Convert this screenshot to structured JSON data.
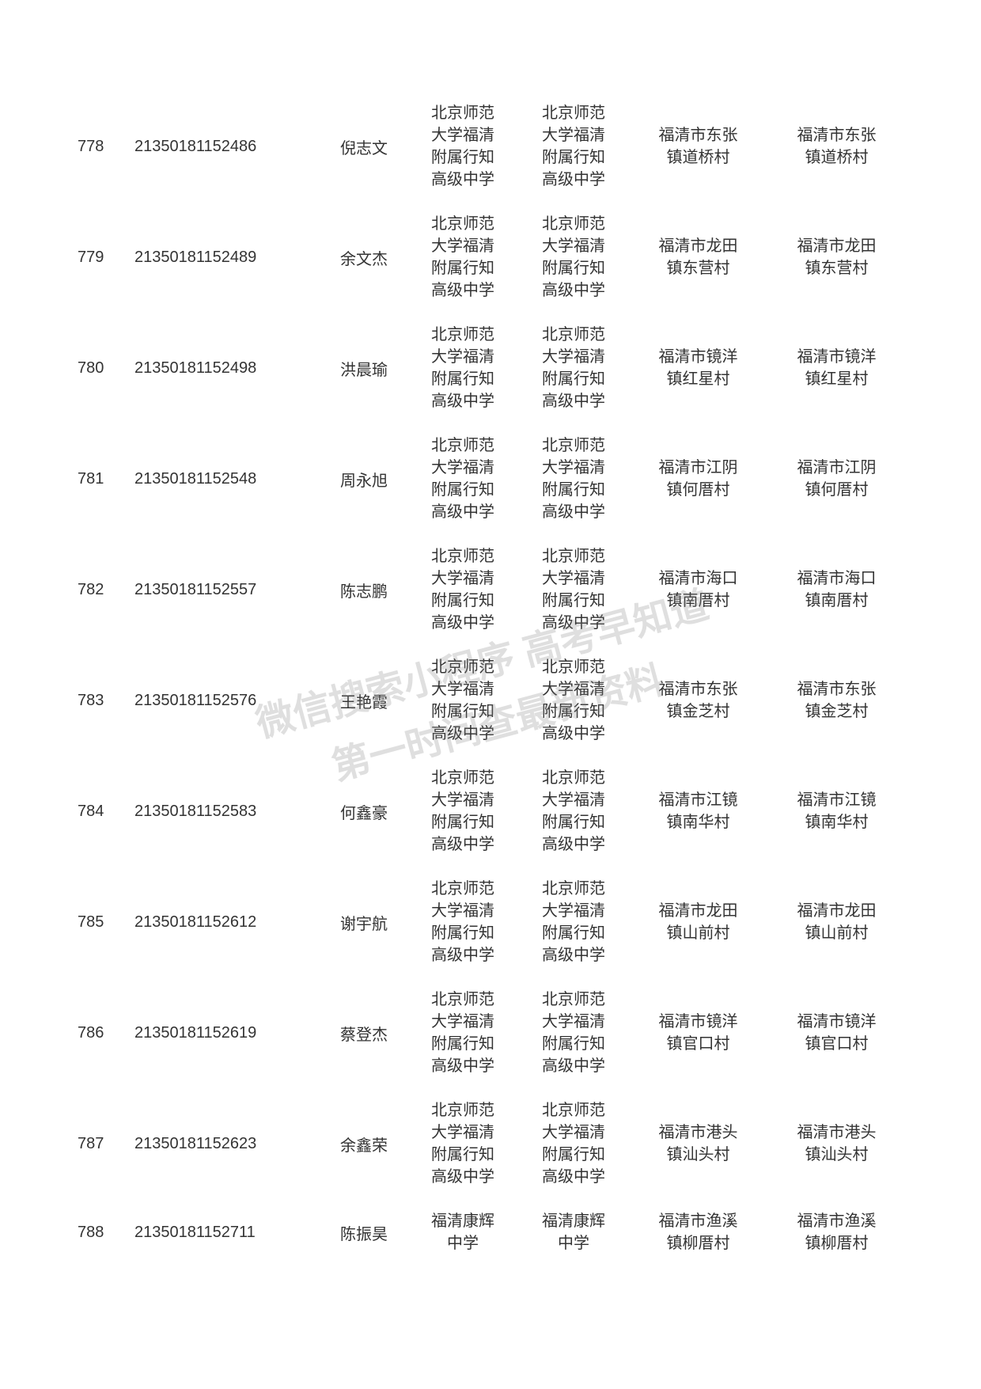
{
  "table": {
    "font_size": 20,
    "text_color": "#333333",
    "background_color": "#ffffff",
    "rows": [
      {
        "index": "778",
        "id": "21350181152486",
        "name": "倪志文",
        "school1": "北京师范大学福清附属行知高级中学",
        "school2": "北京师范大学福清附属行知高级中学",
        "addr1": "福清市东张镇道桥村",
        "addr2": "福清市东张镇道桥村"
      },
      {
        "index": "779",
        "id": "21350181152489",
        "name": "余文杰",
        "school1": "北京师范大学福清附属行知高级中学",
        "school2": "北京师范大学福清附属行知高级中学",
        "addr1": "福清市龙田镇东营村",
        "addr2": "福清市龙田镇东营村"
      },
      {
        "index": "780",
        "id": "21350181152498",
        "name": "洪晨瑜",
        "school1": "北京师范大学福清附属行知高级中学",
        "school2": "北京师范大学福清附属行知高级中学",
        "addr1": "福清市镜洋镇红星村",
        "addr2": "福清市镜洋镇红星村"
      },
      {
        "index": "781",
        "id": "21350181152548",
        "name": "周永旭",
        "school1": "北京师范大学福清附属行知高级中学",
        "school2": "北京师范大学福清附属行知高级中学",
        "addr1": "福清市江阴镇何厝村",
        "addr2": "福清市江阴镇何厝村"
      },
      {
        "index": "782",
        "id": "21350181152557",
        "name": "陈志鹏",
        "school1": "北京师范大学福清附属行知高级中学",
        "school2": "北京师范大学福清附属行知高级中学",
        "addr1": "福清市海口镇南厝村",
        "addr2": "福清市海口镇南厝村"
      },
      {
        "index": "783",
        "id": "21350181152576",
        "name": "王艳霞",
        "school1": "北京师范大学福清附属行知高级中学",
        "school2": "北京师范大学福清附属行知高级中学",
        "addr1": "福清市东张镇金芝村",
        "addr2": "福清市东张镇金芝村"
      },
      {
        "index": "784",
        "id": "21350181152583",
        "name": "何鑫豪",
        "school1": "北京师范大学福清附属行知高级中学",
        "school2": "北京师范大学福清附属行知高级中学",
        "addr1": "福清市江镜镇南华村",
        "addr2": "福清市江镜镇南华村"
      },
      {
        "index": "785",
        "id": "21350181152612",
        "name": "谢宇航",
        "school1": "北京师范大学福清附属行知高级中学",
        "school2": "北京师范大学福清附属行知高级中学",
        "addr1": "福清市龙田镇山前村",
        "addr2": "福清市龙田镇山前村"
      },
      {
        "index": "786",
        "id": "21350181152619",
        "name": "蔡登杰",
        "school1": "北京师范大学福清附属行知高级中学",
        "school2": "北京师范大学福清附属行知高级中学",
        "addr1": "福清市镜洋镇官口村",
        "addr2": "福清市镜洋镇官口村"
      },
      {
        "index": "787",
        "id": "21350181152623",
        "name": "余鑫荣",
        "school1": "北京师范大学福清附属行知高级中学",
        "school2": "北京师范大学福清附属行知高级中学",
        "addr1": "福清市港头镇汕头村",
        "addr2": "福清市港头镇汕头村"
      },
      {
        "index": "788",
        "id": "21350181152711",
        "name": "陈振昊",
        "school1": "福清康辉中学",
        "school2": "福清康辉中学",
        "addr1": "福清市渔溪镇柳厝村",
        "addr2": "福清市渔溪镇柳厝村"
      }
    ]
  },
  "watermark": {
    "line1": "微信搜索小程序 高考早知道",
    "line2": "第一时间查最新资料",
    "color": "rgba(128,128,128,0.25)",
    "rotation": -15,
    "font_size": 48
  }
}
